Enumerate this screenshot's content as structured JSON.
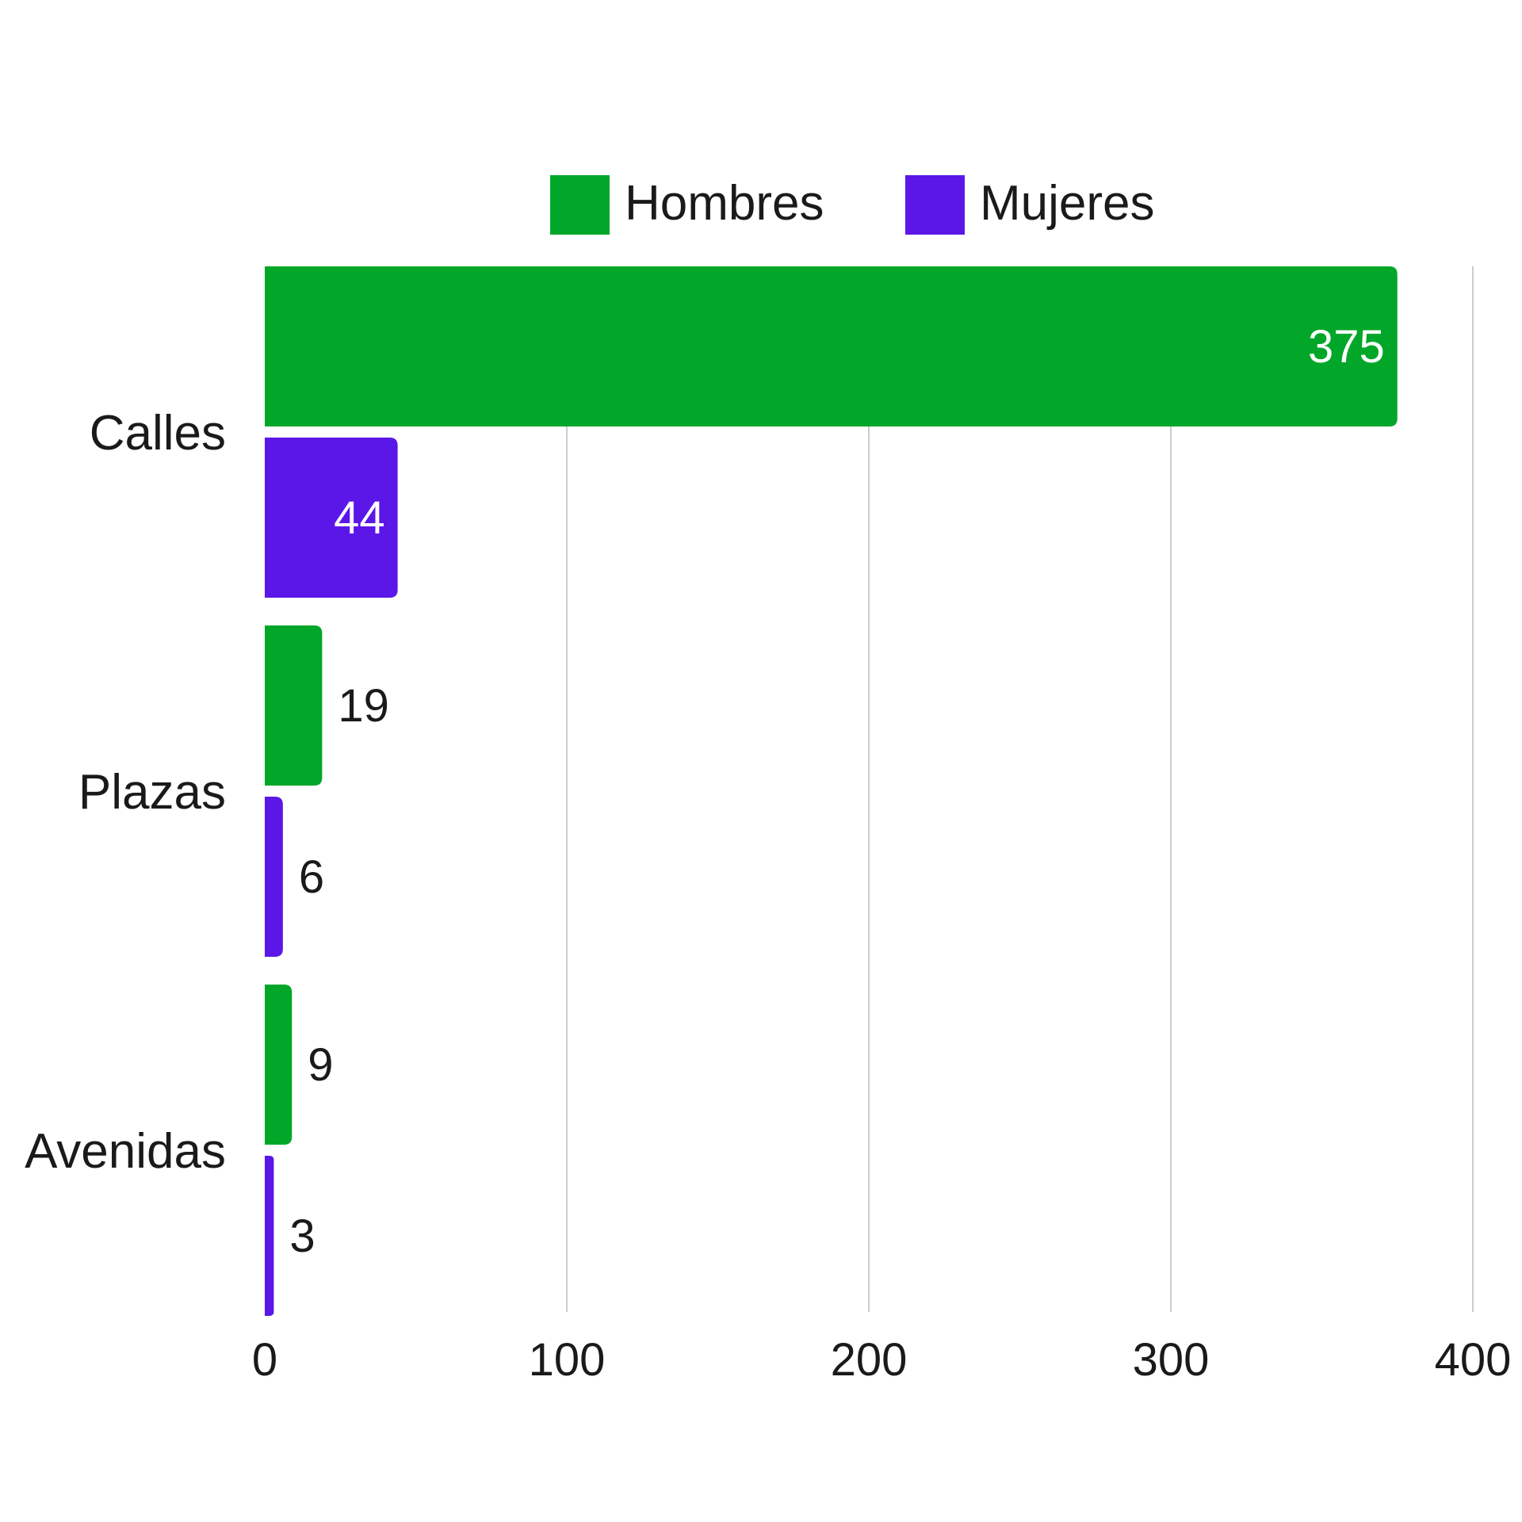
{
  "chart_data": {
    "type": "bar",
    "orientation": "horizontal",
    "categories": [
      "Calles",
      "Plazas",
      "Avenidas"
    ],
    "series": [
      {
        "name": "Hombres",
        "color": "#02a729",
        "values": [
          375,
          19,
          9
        ]
      },
      {
        "name": "Mujeres",
        "color": "#5b17e8",
        "values": [
          44,
          6,
          3
        ]
      }
    ],
    "xlim": [
      0,
      400
    ],
    "xticks": [
      0,
      100,
      200,
      300,
      400
    ],
    "grid": "vertical",
    "legend": "top-center",
    "data_labels": true,
    "inside_label_color": "#ffffff"
  }
}
